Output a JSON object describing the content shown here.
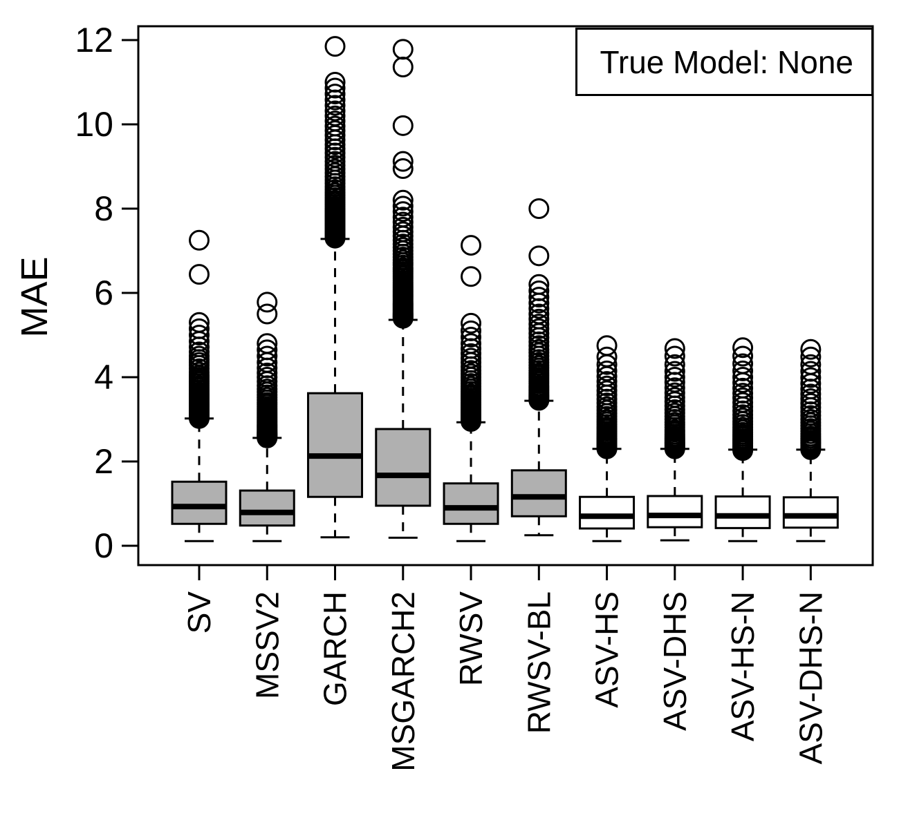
{
  "chart_data": {
    "type": "boxplot",
    "title": "",
    "ylabel": "MAE",
    "xlabel": "",
    "legend": {
      "text": "True Model: None",
      "position": "top-right"
    },
    "y_axis": {
      "ticks": [
        0,
        2,
        4,
        6,
        8,
        10,
        12
      ],
      "ylim": [
        -0.45,
        12.35
      ],
      "grid": false
    },
    "colors": {
      "gray_fill": "#b0b0b0",
      "white_fill": "#ffffff",
      "line": "#000000"
    },
    "categories": [
      "SV",
      "MSSV2",
      "GARCH",
      "MSGARCH2",
      "RWSV",
      "RWSV-BL",
      "ASV-HS",
      "ASV-DHS",
      "ASV-HS-N",
      "ASV-DHS-N"
    ],
    "boxes": [
      {
        "label": "SV",
        "fill": "gray",
        "whisker_low": 0.11,
        "q1": 0.52,
        "median": 0.93,
        "q3": 1.52,
        "whisker_high": 3.02,
        "outliers": [
          3.02,
          3.04,
          3.06,
          3.08,
          3.1,
          3.12,
          3.15,
          3.18,
          3.2,
          3.23,
          3.26,
          3.3,
          3.33,
          3.36,
          3.4,
          3.44,
          3.48,
          3.52,
          3.56,
          3.6,
          3.65,
          3.7,
          3.75,
          3.8,
          3.85,
          3.9,
          3.95,
          4.0,
          4.05,
          4.12,
          4.2,
          4.28,
          4.35,
          4.42,
          4.5,
          4.6,
          4.72,
          4.85,
          5.0,
          5.15,
          5.3,
          6.44,
          7.25
        ]
      },
      {
        "label": "MSSV2",
        "fill": "gray",
        "whisker_low": 0.11,
        "q1": 0.48,
        "median": 0.79,
        "q3": 1.31,
        "whisker_high": 2.56,
        "outliers": [
          2.56,
          2.58,
          2.6,
          2.62,
          2.64,
          2.66,
          2.68,
          2.7,
          2.73,
          2.76,
          2.79,
          2.82,
          2.85,
          2.88,
          2.92,
          2.96,
          3.0,
          3.04,
          3.08,
          3.12,
          3.16,
          3.2,
          3.25,
          3.3,
          3.35,
          3.4,
          3.46,
          3.52,
          3.58,
          3.65,
          3.72,
          3.8,
          3.9,
          4.0,
          4.1,
          4.22,
          4.35,
          4.5,
          4.65,
          4.8,
          5.5,
          5.78
        ]
      },
      {
        "label": "GARCH",
        "fill": "gray",
        "whisker_low": 0.2,
        "q1": 1.16,
        "median": 2.13,
        "q3": 3.62,
        "whisker_high": 7.28,
        "outliers": [
          7.3,
          7.33,
          7.36,
          7.4,
          7.43,
          7.46,
          7.5,
          7.53,
          7.56,
          7.6,
          7.63,
          7.66,
          7.7,
          7.73,
          7.76,
          7.8,
          7.83,
          7.86,
          7.9,
          7.93,
          7.96,
          8.0,
          8.05,
          8.1,
          8.15,
          8.2,
          8.26,
          8.32,
          8.38,
          8.45,
          8.52,
          8.6,
          8.68,
          8.76,
          8.85,
          8.94,
          9.03,
          9.12,
          9.22,
          9.32,
          9.42,
          9.52,
          9.63,
          9.74,
          9.85,
          9.96,
          10.08,
          10.2,
          10.32,
          10.45,
          10.58,
          10.72,
          10.86,
          11.0,
          11.85
        ]
      },
      {
        "label": "MSGARCH2",
        "fill": "gray",
        "whisker_low": 0.19,
        "q1": 0.95,
        "median": 1.67,
        "q3": 2.77,
        "whisker_high": 5.36,
        "outliers": [
          5.4,
          5.42,
          5.44,
          5.46,
          5.48,
          5.5,
          5.52,
          5.55,
          5.58,
          5.61,
          5.64,
          5.67,
          5.7,
          5.73,
          5.76,
          5.8,
          5.84,
          5.88,
          5.92,
          5.96,
          6.0,
          6.04,
          6.08,
          6.12,
          6.16,
          6.2,
          6.25,
          6.3,
          6.35,
          6.4,
          6.45,
          6.5,
          6.55,
          6.6,
          6.66,
          6.72,
          6.78,
          6.85,
          6.92,
          7.0,
          7.08,
          7.16,
          7.25,
          7.35,
          7.45,
          7.56,
          7.68,
          7.8,
          7.93,
          8.06,
          8.2,
          8.95,
          9.12,
          9.97,
          11.36,
          11.78
        ]
      },
      {
        "label": "RWSV",
        "fill": "gray",
        "whisker_low": 0.11,
        "q1": 0.52,
        "median": 0.9,
        "q3": 1.48,
        "whisker_high": 2.93,
        "outliers": [
          2.95,
          2.97,
          3.0,
          3.02,
          3.05,
          3.08,
          3.11,
          3.14,
          3.17,
          3.2,
          3.24,
          3.28,
          3.32,
          3.36,
          3.4,
          3.45,
          3.5,
          3.55,
          3.6,
          3.66,
          3.72,
          3.78,
          3.85,
          3.92,
          4.0,
          4.08,
          4.16,
          4.25,
          4.35,
          4.45,
          4.56,
          4.68,
          4.8,
          4.95,
          5.1,
          5.28,
          6.39,
          7.13
        ]
      },
      {
        "label": "RWSV-BL",
        "fill": "gray",
        "whisker_low": 0.25,
        "q1": 0.7,
        "median": 1.16,
        "q3": 1.79,
        "whisker_high": 3.44,
        "outliers": [
          3.45,
          3.48,
          3.51,
          3.54,
          3.57,
          3.6,
          3.64,
          3.68,
          3.72,
          3.76,
          3.8,
          3.85,
          3.9,
          3.95,
          4.0,
          4.05,
          4.1,
          4.16,
          4.22,
          4.28,
          4.35,
          4.42,
          4.5,
          4.58,
          4.66,
          4.75,
          4.84,
          4.94,
          5.04,
          5.15,
          5.26,
          5.38,
          5.5,
          5.63,
          5.76,
          5.9,
          6.05,
          6.2,
          6.88,
          8.0
        ]
      },
      {
        "label": "ASV-HS",
        "fill": "white",
        "whisker_low": 0.11,
        "q1": 0.41,
        "median": 0.7,
        "q3": 1.16,
        "whisker_high": 2.3,
        "outliers": [
          2.3,
          2.32,
          2.34,
          2.36,
          2.38,
          2.4,
          2.43,
          2.46,
          2.49,
          2.52,
          2.55,
          2.59,
          2.63,
          2.67,
          2.72,
          2.77,
          2.82,
          2.88,
          2.94,
          3.0,
          3.07,
          3.14,
          3.22,
          3.3,
          3.39,
          3.48,
          3.58,
          3.68,
          3.79,
          3.9,
          4.02,
          4.15,
          4.3,
          4.48,
          4.75
        ]
      },
      {
        "label": "ASV-DHS",
        "fill": "white",
        "whisker_low": 0.13,
        "q1": 0.44,
        "median": 0.72,
        "q3": 1.18,
        "whisker_high": 2.3,
        "outliers": [
          2.3,
          2.33,
          2.36,
          2.39,
          2.42,
          2.45,
          2.48,
          2.52,
          2.56,
          2.6,
          2.65,
          2.7,
          2.75,
          2.81,
          2.87,
          2.93,
          3.0,
          3.07,
          3.15,
          3.23,
          3.32,
          3.42,
          3.52,
          3.63,
          3.75,
          3.88,
          4.0,
          4.14,
          4.3,
          4.5,
          4.68
        ]
      },
      {
        "label": "ASV-HS-N",
        "fill": "white",
        "whisker_low": 0.11,
        "q1": 0.42,
        "median": 0.71,
        "q3": 1.17,
        "whisker_high": 2.28,
        "outliers": [
          2.26,
          2.29,
          2.32,
          2.35,
          2.38,
          2.42,
          2.46,
          2.5,
          2.54,
          2.59,
          2.64,
          2.69,
          2.75,
          2.81,
          2.88,
          2.95,
          3.03,
          3.11,
          3.2,
          3.3,
          3.4,
          3.51,
          3.62,
          3.74,
          3.87,
          4.0,
          4.15,
          4.32,
          4.5,
          4.7
        ]
      },
      {
        "label": "ASV-DHS-N",
        "fill": "white",
        "whisker_low": 0.11,
        "q1": 0.43,
        "median": 0.71,
        "q3": 1.15,
        "whisker_high": 2.28,
        "outliers": [
          2.28,
          2.31,
          2.34,
          2.38,
          2.42,
          2.46,
          2.5,
          2.55,
          2.6,
          2.66,
          2.72,
          2.78,
          2.85,
          2.92,
          3.0,
          3.09,
          3.18,
          3.28,
          3.38,
          3.49,
          3.6,
          3.72,
          3.85,
          3.99,
          4.14,
          4.3,
          4.48,
          4.66
        ]
      }
    ]
  }
}
